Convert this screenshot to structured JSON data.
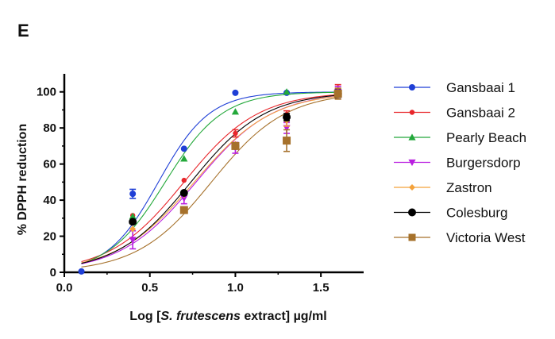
{
  "panel_letter": "E",
  "chart_data": {
    "type": "scatter",
    "xlabel_parts": [
      {
        "text": "Log [",
        "italic": false
      },
      {
        "text": "S. frutescens",
        "italic": true
      },
      {
        "text": " extract] ",
        "italic": false
      },
      {
        "text": "µg/ml",
        "italic": false
      }
    ],
    "ylabel": "% DPPH reduction",
    "xlim": [
      0.0,
      1.75
    ],
    "ylim": [
      0,
      110
    ],
    "xticks": [
      "0.0",
      "0.5",
      "1.0",
      "1.5"
    ],
    "xtick_values": [
      0.0,
      0.5,
      1.0,
      1.5
    ],
    "yticks": [
      "0",
      "20",
      "40",
      "60",
      "80",
      "100"
    ],
    "ytick_values": [
      0,
      20,
      40,
      60,
      80,
      100
    ],
    "grid": false,
    "legend_position": "right",
    "series": [
      {
        "name": "Gansbaai 1",
        "color": "#1f3fd6",
        "marker": "circle",
        "x": [
          0.1,
          0.4,
          0.7,
          1.0,
          1.3,
          1.6
        ],
        "y": [
          0.5,
          43.5,
          68.5,
          99.5,
          99.5,
          99.5
        ],
        "err": [
          0,
          2.5,
          0,
          0,
          0,
          0
        ],
        "logEC50": 0.55,
        "hill": 2.9
      },
      {
        "name": "Gansbaai 2",
        "color": "#e8262b",
        "marker": "circle-small",
        "x": [
          0.4,
          0.7,
          1.0,
          1.3,
          1.6
        ],
        "y": [
          31.5,
          51,
          77,
          87.5,
          101
        ],
        "err": [
          0,
          0,
          2,
          2,
          3
        ],
        "logEC50": 0.7,
        "hill": 2.0
      },
      {
        "name": "Pearly Beach",
        "color": "#23a83a",
        "marker": "triangle-up",
        "x": [
          0.4,
          0.7,
          1.0,
          1.3,
          1.6
        ],
        "y": [
          31,
          63,
          89,
          100,
          100
        ],
        "err": [
          0,
          0,
          0,
          0,
          0
        ],
        "logEC50": 0.59,
        "hill": 2.6
      },
      {
        "name": "Burgersdorp",
        "color": "#b91ee0",
        "marker": "triangle-down",
        "x": [
          0.4,
          0.7,
          1.0,
          1.3,
          1.6
        ],
        "y": [
          18,
          41,
          69,
          80,
          100
        ],
        "err": [
          5,
          3,
          3,
          3,
          3
        ],
        "logEC50": 0.77,
        "hill": 1.95
      },
      {
        "name": "Zastron",
        "color": "#f4a23b",
        "marker": "diamond",
        "x": [
          0.4,
          0.7,
          1.0,
          1.3,
          1.6
        ],
        "y": [
          24,
          43,
          71,
          84,
          99
        ],
        "err": [
          0,
          0,
          0,
          3,
          3
        ],
        "logEC50": 0.76,
        "hill": 1.9
      },
      {
        "name": "Colesburg",
        "color": "#000000",
        "marker": "circle-large",
        "x": [
          0.4,
          0.7,
          1.0,
          1.3,
          1.6
        ],
        "y": [
          28,
          44,
          70,
          86,
          99
        ],
        "err": [
          0,
          0,
          0,
          2,
          2
        ],
        "logEC50": 0.74,
        "hill": 2.0
      },
      {
        "name": "Victoria West",
        "color": "#a6712b",
        "marker": "square",
        "x": [
          0.7,
          1.0,
          1.3,
          1.6
        ],
        "y": [
          34.5,
          70,
          73,
          99
        ],
        "err": [
          0,
          0,
          6,
          3
        ],
        "logEC50": 0.86,
        "hill": 2.0
      }
    ]
  }
}
